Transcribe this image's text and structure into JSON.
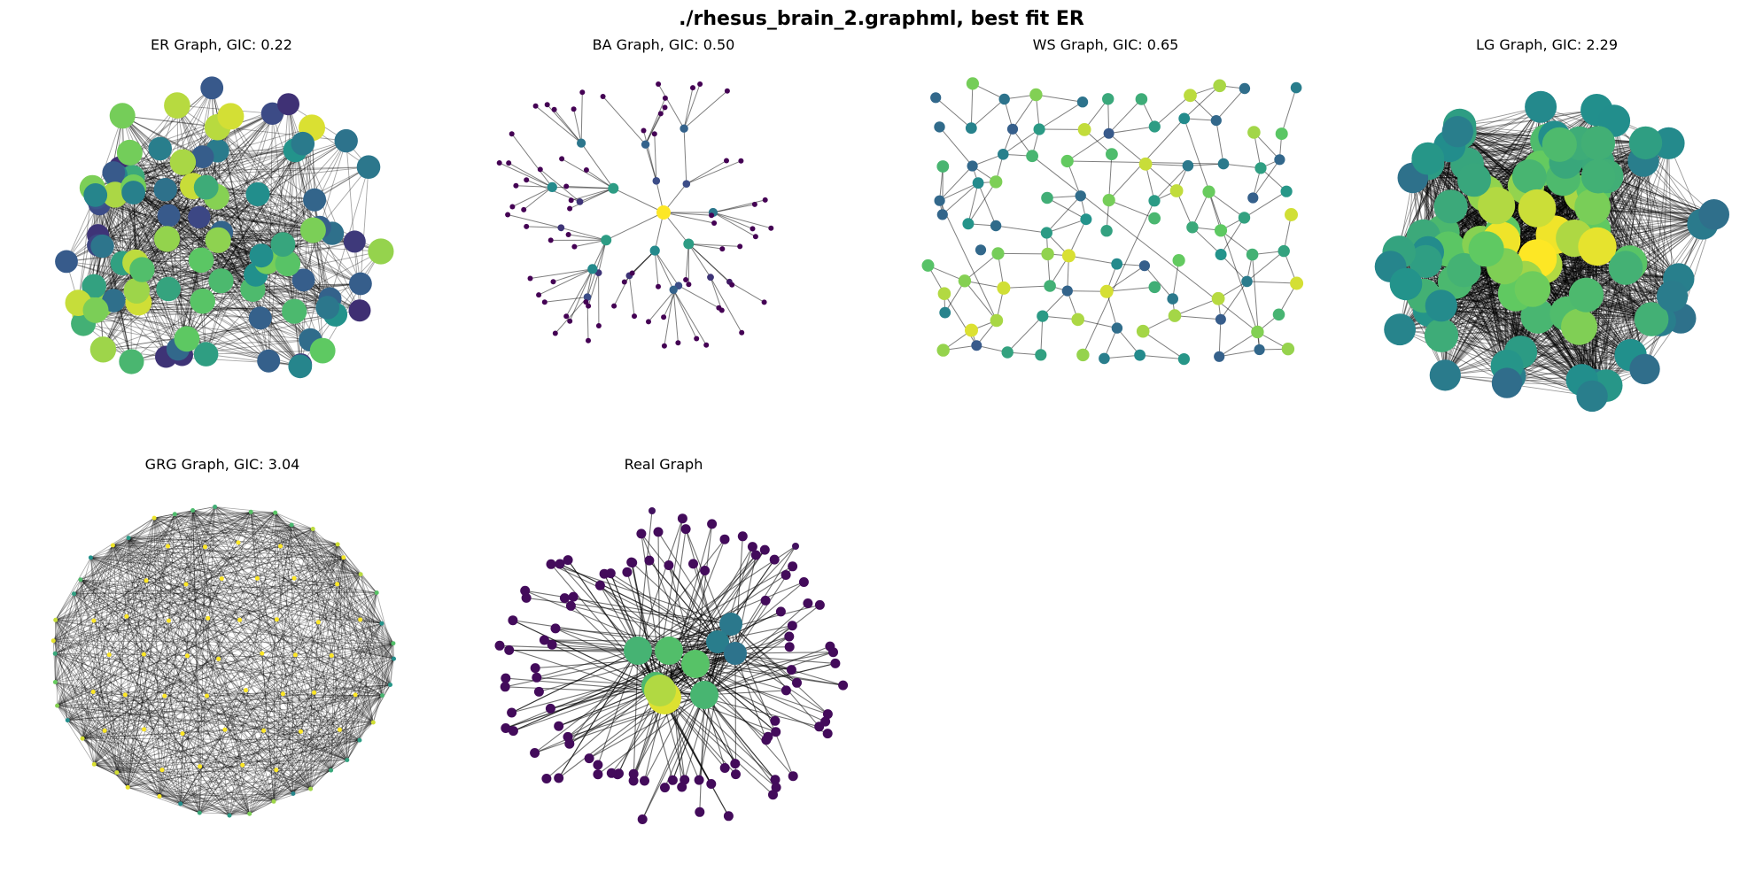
{
  "figure": {
    "title": "./rhesus_brain_2.graphml, best fit ER"
  },
  "panels": [
    {
      "id": "er",
      "title": "ER Graph, GIC: 0.22"
    },
    {
      "id": "ba",
      "title": "BA Graph, GIC: 0.50"
    },
    {
      "id": "ws",
      "title": "WS Graph, GIC: 0.65"
    },
    {
      "id": "lg",
      "title": "LG Graph, GIC: 2.29"
    },
    {
      "id": "grg",
      "title": "GRG Graph, GIC: 3.04"
    },
    {
      "id": "real",
      "title": "Real Graph"
    }
  ],
  "colormap": {
    "name": "viridis",
    "stops": [
      "#440154",
      "#3b528b",
      "#21918c",
      "#5ec962",
      "#fde725"
    ]
  }
}
